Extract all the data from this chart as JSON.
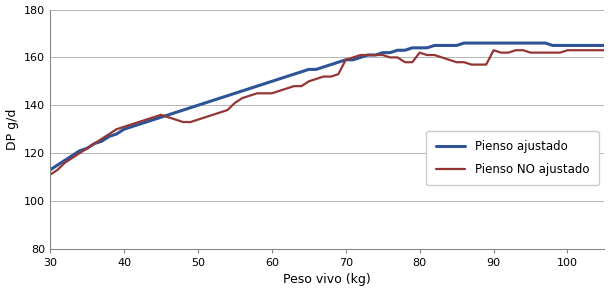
{
  "title": "",
  "xlabel": "Peso vivo (kg)",
  "ylabel": "DP g/d",
  "xlim": [
    30,
    105
  ],
  "ylim": [
    80,
    180
  ],
  "xticks": [
    30,
    40,
    50,
    60,
    70,
    80,
    90,
    100
  ],
  "yticks": [
    80,
    100,
    120,
    140,
    160,
    180
  ],
  "legend_labels": [
    "Pienso ajustado",
    "Pienso NO ajustado"
  ],
  "line1_color": "#2F5496",
  "line2_color": "#943634",
  "background_color": "#FFFFFF",
  "grid_color": "#AAAAAA",
  "x_ajustado": [
    30,
    31,
    32,
    33,
    34,
    35,
    36,
    37,
    38,
    39,
    40,
    41,
    42,
    43,
    44,
    45,
    46,
    47,
    48,
    49,
    50,
    51,
    52,
    53,
    54,
    55,
    56,
    57,
    58,
    59,
    60,
    61,
    62,
    63,
    64,
    65,
    66,
    67,
    68,
    69,
    70,
    71,
    72,
    73,
    74,
    75,
    76,
    77,
    78,
    79,
    80,
    81,
    82,
    83,
    84,
    85,
    86,
    87,
    88,
    89,
    90,
    91,
    92,
    93,
    94,
    95,
    96,
    97,
    98,
    99,
    100,
    101,
    102,
    103,
    104,
    105
  ],
  "y_ajustado": [
    113,
    115,
    117,
    119,
    121,
    122,
    124,
    125,
    127,
    128,
    130,
    131,
    132,
    133,
    134,
    135,
    136,
    137,
    138,
    139,
    140,
    141,
    142,
    143,
    144,
    145,
    146,
    147,
    148,
    149,
    150,
    151,
    152,
    153,
    154,
    155,
    155,
    156,
    157,
    158,
    159,
    159,
    160,
    161,
    161,
    162,
    162,
    163,
    163,
    164,
    164,
    164,
    165,
    165,
    165,
    165,
    166,
    166,
    166,
    166,
    166,
    166,
    166,
    166,
    166,
    166,
    166,
    166,
    165,
    165,
    165,
    165,
    165,
    165,
    165,
    165
  ],
  "x_no_ajustado": [
    30,
    31,
    32,
    33,
    34,
    35,
    36,
    37,
    38,
    39,
    40,
    41,
    42,
    43,
    44,
    45,
    46,
    47,
    48,
    49,
    50,
    51,
    52,
    53,
    54,
    55,
    56,
    57,
    58,
    59,
    60,
    61,
    62,
    63,
    64,
    65,
    66,
    67,
    68,
    69,
    70,
    71,
    72,
    73,
    74,
    75,
    76,
    77,
    78,
    79,
    80,
    81,
    82,
    83,
    84,
    85,
    86,
    87,
    88,
    89,
    90,
    91,
    92,
    93,
    94,
    95,
    96,
    97,
    98,
    99,
    100,
    101,
    102,
    103,
    104,
    105
  ],
  "y_no_ajustado": [
    111,
    113,
    116,
    118,
    120,
    122,
    124,
    126,
    128,
    130,
    131,
    132,
    133,
    134,
    135,
    136,
    135,
    134,
    133,
    133,
    134,
    135,
    136,
    137,
    138,
    141,
    143,
    144,
    145,
    145,
    145,
    146,
    147,
    148,
    148,
    150,
    151,
    152,
    152,
    153,
    159,
    160,
    161,
    161,
    161,
    161,
    160,
    160,
    158,
    158,
    162,
    161,
    161,
    160,
    159,
    158,
    158,
    157,
    157,
    157,
    163,
    162,
    162,
    163,
    163,
    162,
    162,
    162,
    162,
    162,
    163,
    163,
    163,
    163,
    163,
    163
  ]
}
